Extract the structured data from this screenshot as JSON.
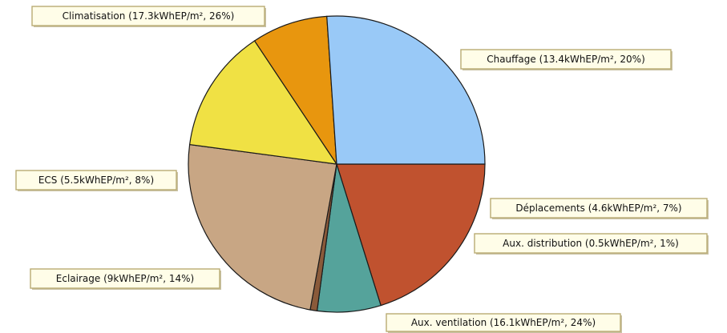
{
  "chart_data": {
    "type": "pie",
    "title": "",
    "slices": [
      {
        "label": "Chauffage (13.4kWhEP/m², 20%)",
        "value": 13.4,
        "percent": 20,
        "color": "#c0522f"
      },
      {
        "label": "Déplacements (4.6kWhEP/m², 7%)",
        "value": 4.6,
        "percent": 7,
        "color": "#55a39b"
      },
      {
        "label": "Aux. distribution (0.5kWhEP/m², 1%)",
        "value": 0.5,
        "percent": 1,
        "color": "#8a5a3a"
      },
      {
        "label": "Aux. ventilation (16.1kWhEP/m², 24%)",
        "value": 16.1,
        "percent": 24,
        "color": "#c8a684"
      },
      {
        "label": "Eclairage (9kWhEP/m², 14%)",
        "value": 9,
        "percent": 14,
        "color": "#f0e144"
      },
      {
        "label": "ECS (5.5kWhEP/m², 8%)",
        "value": 5.5,
        "percent": 8,
        "color": "#e8960e"
      },
      {
        "label": "Climatisation (17.3kWhEP/m², 26%)",
        "value": 17.3,
        "percent": 26,
        "color": "#99c9f7"
      }
    ],
    "start_angle": "3 o'clock",
    "direction": "clockwise",
    "legend": "none (callout labels beside slices)"
  }
}
